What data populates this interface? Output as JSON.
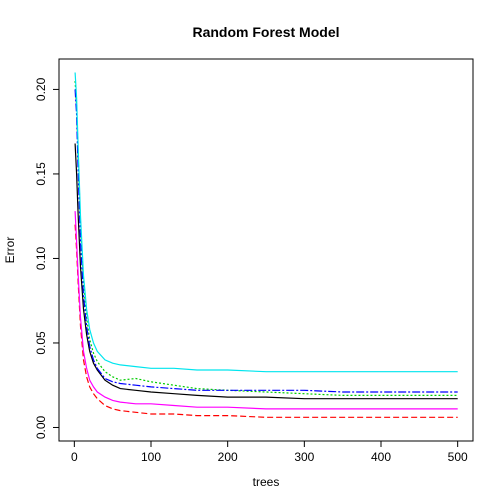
{
  "chart_data": {
    "type": "line",
    "title": "Random Forest Model",
    "xlabel": "trees",
    "ylabel": "Error",
    "xlim": [
      -20,
      520
    ],
    "ylim": [
      -0.008,
      0.218
    ],
    "xticks": [
      0,
      100,
      200,
      300,
      400,
      500
    ],
    "yticks": [
      0.0,
      0.05,
      0.1,
      0.15,
      0.2
    ],
    "ytick_labels": [
      "0.00",
      "0.05",
      "0.10",
      "0.15",
      "0.20"
    ],
    "grid": false,
    "legend": "none",
    "series": [
      {
        "color": "#000000",
        "dash": "",
        "x": [
          1,
          3,
          5,
          8,
          12,
          16,
          20,
          25,
          30,
          40,
          50,
          60,
          80,
          100,
          130,
          160,
          200,
          250,
          300,
          350,
          400,
          450,
          500
        ],
        "y": [
          0.168,
          0.15,
          0.125,
          0.095,
          0.07,
          0.055,
          0.045,
          0.038,
          0.034,
          0.028,
          0.025,
          0.023,
          0.022,
          0.021,
          0.02,
          0.019,
          0.018,
          0.018,
          0.017,
          0.017,
          0.017,
          0.017,
          0.017
        ]
      },
      {
        "color": "#ff0000",
        "dash": "6,3",
        "x": [
          1,
          3,
          5,
          8,
          12,
          16,
          20,
          25,
          30,
          40,
          50,
          60,
          80,
          100,
          130,
          160,
          200,
          250,
          300,
          350,
          400,
          450,
          500
        ],
        "y": [
          0.12,
          0.105,
          0.085,
          0.06,
          0.04,
          0.03,
          0.024,
          0.02,
          0.017,
          0.013,
          0.011,
          0.01,
          0.009,
          0.008,
          0.008,
          0.007,
          0.007,
          0.006,
          0.006,
          0.006,
          0.006,
          0.006,
          0.006
        ]
      },
      {
        "color": "#00cd00",
        "dash": "2,2",
        "x": [
          1,
          3,
          5,
          8,
          12,
          16,
          20,
          25,
          30,
          40,
          50,
          60,
          80,
          100,
          130,
          160,
          200,
          250,
          300,
          350,
          400,
          450,
          500
        ],
        "y": [
          0.205,
          0.19,
          0.16,
          0.12,
          0.085,
          0.065,
          0.052,
          0.044,
          0.039,
          0.033,
          0.03,
          0.028,
          0.029,
          0.027,
          0.025,
          0.023,
          0.022,
          0.021,
          0.02,
          0.019,
          0.019,
          0.019,
          0.019
        ]
      },
      {
        "color": "#0000ff",
        "dash": "8,2,2,2",
        "x": [
          1,
          3,
          5,
          8,
          12,
          16,
          20,
          25,
          30,
          40,
          50,
          60,
          80,
          100,
          130,
          160,
          200,
          250,
          300,
          350,
          400,
          450,
          500
        ],
        "y": [
          0.2,
          0.185,
          0.15,
          0.11,
          0.078,
          0.06,
          0.048,
          0.04,
          0.035,
          0.029,
          0.027,
          0.026,
          0.025,
          0.024,
          0.023,
          0.022,
          0.022,
          0.022,
          0.022,
          0.021,
          0.021,
          0.021,
          0.021
        ]
      },
      {
        "color": "#00e5ee",
        "dash": "",
        "x": [
          1,
          3,
          5,
          8,
          12,
          16,
          20,
          25,
          30,
          40,
          50,
          60,
          80,
          100,
          130,
          160,
          200,
          250,
          300,
          350,
          400,
          450,
          500
        ],
        "y": [
          0.21,
          0.195,
          0.165,
          0.125,
          0.09,
          0.07,
          0.058,
          0.05,
          0.045,
          0.04,
          0.038,
          0.037,
          0.036,
          0.035,
          0.035,
          0.034,
          0.034,
          0.033,
          0.033,
          0.033,
          0.033,
          0.033,
          0.033
        ]
      },
      {
        "color": "#ff00ff",
        "dash": "",
        "x": [
          1,
          3,
          5,
          8,
          12,
          16,
          20,
          25,
          30,
          40,
          50,
          60,
          80,
          100,
          130,
          160,
          200,
          250,
          300,
          350,
          400,
          450,
          500
        ],
        "y": [
          0.128,
          0.11,
          0.09,
          0.065,
          0.045,
          0.035,
          0.028,
          0.024,
          0.021,
          0.018,
          0.016,
          0.015,
          0.014,
          0.014,
          0.013,
          0.012,
          0.012,
          0.011,
          0.011,
          0.011,
          0.011,
          0.011,
          0.011
        ]
      }
    ]
  }
}
